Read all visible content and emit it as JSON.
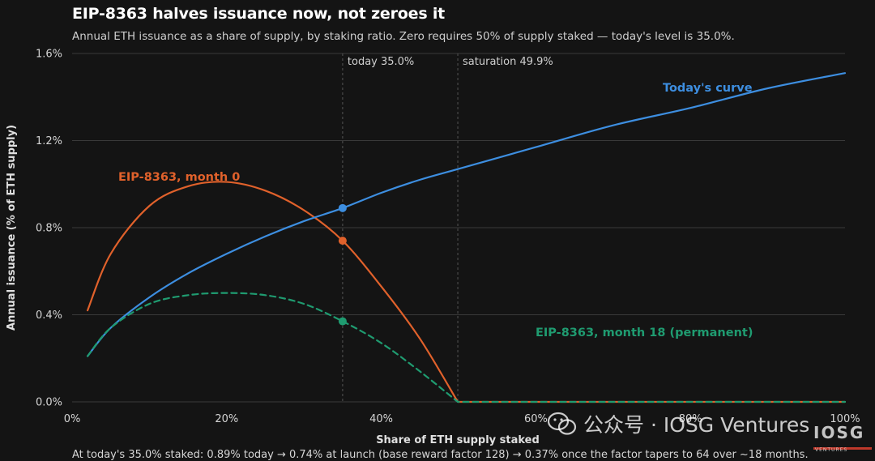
{
  "title": "EIP-8363 halves issuance now, not zeroes it",
  "subtitle": "Annual ETH issuance as a share of supply, by staking ratio. Zero requires 50% of supply staked — today's level is 35.0%.",
  "footer": "At today's 35.0% staked: 0.89% today → 0.74% at launch (base reward factor 128) → 0.37% once the factor tapers to 64 over ~18 months.",
  "watermark": {
    "text": "公众号 · IOSG Ventures",
    "logo": "IOSG",
    "logo_sub": "VENTURES"
  },
  "colors": {
    "background": "#141414",
    "grid": "#3a3a3a",
    "today_curve": "#3d8ee0",
    "month0": "#e0612b",
    "month18": "#1f9b70",
    "refline": "#555555"
  },
  "chart_data": {
    "type": "line",
    "xlabel": "Share of ETH supply staked",
    "ylabel": "Annual issuance (% of ETH supply)",
    "xlim": [
      0,
      100
    ],
    "ylim": [
      0,
      1.6
    ],
    "xticks": [
      "0%",
      "20%",
      "40%",
      "60%",
      "80%",
      "100%"
    ],
    "yticks": [
      "0.0%",
      "0.4%",
      "0.8%",
      "1.2%",
      "1.6%"
    ],
    "grid": "horizontal",
    "reference_lines": [
      {
        "x": 35.0,
        "label": "today 35.0%"
      },
      {
        "x": 49.9,
        "label": "saturation 49.9%"
      }
    ],
    "series": [
      {
        "name": "Today's curve",
        "color": "#3d8ee0",
        "dashed": false,
        "x": [
          2,
          5,
          10,
          15,
          20,
          25,
          30,
          35,
          40,
          45,
          50,
          60,
          70,
          80,
          90,
          100
        ],
        "y": [
          0.21,
          0.34,
          0.48,
          0.59,
          0.68,
          0.76,
          0.83,
          0.89,
          0.96,
          1.02,
          1.07,
          1.17,
          1.27,
          1.35,
          1.44,
          1.51
        ],
        "marker": {
          "x": 35.0,
          "y": 0.89
        }
      },
      {
        "name": "EIP-8363, month 0",
        "color": "#e0612b",
        "dashed": false,
        "x": [
          2,
          5,
          10,
          15,
          20,
          25,
          30,
          35,
          40,
          45,
          49.9,
          60,
          70,
          80,
          90,
          100
        ],
        "y": [
          0.42,
          0.68,
          0.9,
          0.99,
          1.01,
          0.97,
          0.88,
          0.74,
          0.53,
          0.29,
          0.0,
          0.0,
          0.0,
          0.0,
          0.0,
          0.0
        ],
        "marker": {
          "x": 35.0,
          "y": 0.74
        }
      },
      {
        "name": "EIP-8363, month 18 (permanent)",
        "color": "#1f9b70",
        "dashed": true,
        "x": [
          2,
          5,
          10,
          15,
          20,
          25,
          30,
          35,
          40,
          45,
          49.9,
          60,
          70,
          80,
          90,
          100
        ],
        "y": [
          0.21,
          0.34,
          0.45,
          0.49,
          0.5,
          0.49,
          0.45,
          0.37,
          0.27,
          0.14,
          0.0,
          0.0,
          0.0,
          0.0,
          0.0,
          0.0
        ],
        "marker": {
          "x": 35.0,
          "y": 0.37
        }
      }
    ]
  }
}
